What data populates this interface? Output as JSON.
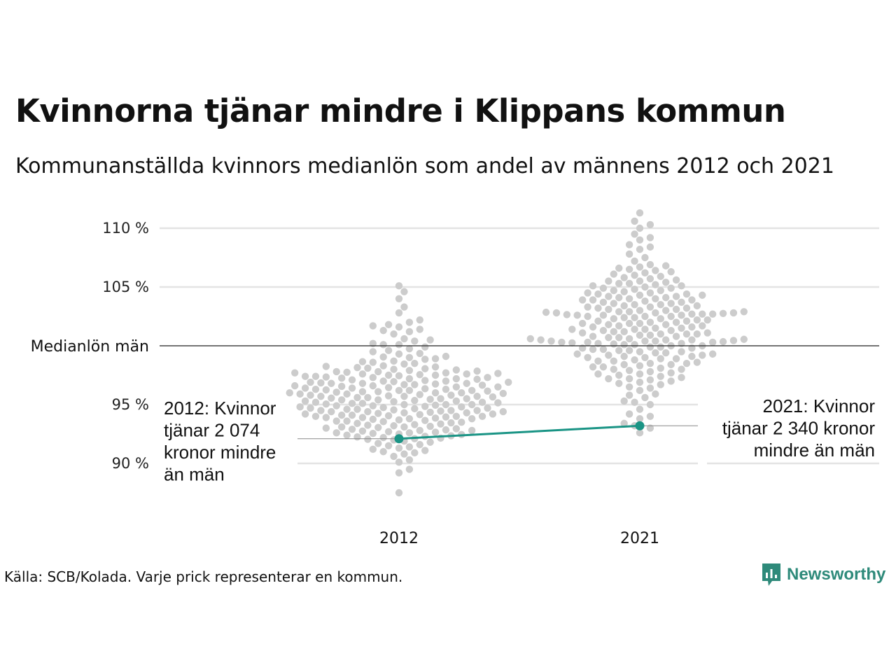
{
  "header": {
    "title": "Kvinnorna tjänar mindre i Klippans kommun",
    "subtitle": "Kommunanställda kvinnors medianlön som andel av männens 2012 och 2021"
  },
  "footer": {
    "source": "Källa: SCB/Kolada. Varje prick representerar en kommun.",
    "brand": "Newsworthy"
  },
  "colors": {
    "dots": "#cccccc",
    "highlight": "#1a9485",
    "grid": "#e3e3e3",
    "reference": "#222222",
    "brand": "#2e8a7a"
  },
  "chart_data": {
    "type": "scatter",
    "x": [
      "2012",
      "2021"
    ],
    "ylim": [
      86.5,
      112
    ],
    "yticks": [
      {
        "value": 90,
        "label": "90 %"
      },
      {
        "value": 95,
        "label": "95 %"
      },
      {
        "value": 105,
        "label": "105 %"
      },
      {
        "value": 110,
        "label": "110 %"
      }
    ],
    "reference_line": {
      "value": 100,
      "label": "Medianlön män"
    },
    "series": [
      {
        "name": "",
        "highlight": true,
        "values": [
          92.1,
          93.2
        ]
      }
    ],
    "annotations": [
      {
        "x": "2012",
        "text": [
          "2012: Kvinnor",
          "tjänar 2 074",
          "kronor mindre",
          "än män"
        ],
        "align": "left"
      },
      {
        "x": "2021",
        "text": [
          "2021: Kvinnor",
          "tjänar 2 340 kronor",
          "mindre än män"
        ],
        "align": "right"
      }
    ],
    "distributions": [
      {
        "x": "2012",
        "values": [
          87.5,
          89.2,
          89.5,
          90.1,
          90.3,
          90.6,
          90.8,
          91.0,
          91.3,
          91.5,
          91.7,
          91.8,
          92.0,
          92.1,
          92.2,
          92.3,
          92.4,
          92.5,
          92.6,
          92.7,
          92.8,
          92.9,
          93.0,
          93.1,
          93.2,
          93.3,
          93.4,
          93.5,
          93.6,
          93.7,
          93.8,
          93.9,
          94.0,
          94.1,
          94.2,
          94.3,
          94.4,
          94.5,
          94.6,
          94.7,
          94.8,
          94.9,
          95.0,
          95.1,
          95.2,
          95.3,
          95.4,
          95.5,
          95.6,
          95.7,
          95.8,
          95.9,
          96.0,
          96.1,
          96.2,
          96.3,
          96.4,
          96.5,
          96.6,
          96.7,
          96.8,
          96.9,
          97.0,
          97.1,
          97.2,
          97.3,
          97.4,
          97.5,
          97.6,
          97.7,
          97.8,
          97.9,
          98.0,
          98.1,
          98.2,
          98.3,
          98.5,
          98.7,
          98.9,
          99.1,
          99.3,
          99.6,
          99.9,
          100.2,
          100.6,
          101.0,
          101.4,
          101.8,
          102.2,
          102.8,
          103.3,
          104.0,
          104.6,
          105.1,
          91.2,
          91.4,
          91.6,
          91.9,
          92.05,
          92.15,
          92.25,
          92.35,
          92.45,
          92.55,
          92.65,
          92.75,
          92.85,
          92.95,
          93.05,
          93.15,
          93.25,
          93.35,
          93.45,
          93.55,
          93.65,
          93.75,
          93.85,
          93.95,
          94.05,
          94.15,
          94.25,
          94.35,
          94.45,
          94.55,
          94.65,
          94.75,
          94.85,
          94.95,
          95.05,
          95.15,
          95.25,
          95.35,
          95.45,
          95.55,
          95.65,
          95.75,
          95.85,
          95.95,
          96.05,
          96.15,
          96.25,
          96.35,
          96.45,
          96.55,
          96.65,
          96.75,
          96.85,
          96.95,
          97.05,
          97.15,
          97.25,
          97.35,
          97.45,
          97.55,
          97.65,
          97.75,
          97.85,
          97.95,
          98.05,
          98.15,
          98.25,
          98.45,
          98.65,
          98.85,
          99.05,
          99.35,
          99.75,
          100.1,
          100.5,
          101.2,
          101.6,
          102.0,
          94.0,
          94.2,
          94.4,
          94.6,
          94.8,
          95.0,
          95.2,
          95.4,
          95.6,
          95.8,
          96.0,
          96.2,
          96.4,
          96.6,
          96.8,
          97.0,
          97.2,
          97.4,
          95.1,
          95.3,
          95.5,
          95.7,
          95.9,
          96.1,
          96.3,
          96.5,
          96.7,
          96.9,
          93.6,
          93.8,
          94.1,
          94.3,
          94.5,
          94.7,
          94.9,
          97.6,
          97.8,
          97.7,
          95.0,
          94.5,
          96.8,
          97.3,
          95.7,
          96.2,
          94.4,
          94.0,
          97.5,
          92.6,
          90.9,
          91.1,
          98.6,
          99.0,
          99.5,
          100.1,
          100.4,
          101.3,
          101.7,
          93.1,
          93.9,
          92.8,
          96.0
        ]
      },
      {
        "x": "2021",
        "values": [
          92.6,
          93.0,
          93.4,
          93.8,
          94.2,
          94.6,
          95.0,
          95.3,
          95.6,
          95.9,
          96.2,
          96.5,
          96.7,
          96.9,
          97.1,
          97.3,
          97.5,
          97.7,
          97.9,
          98.1,
          98.3,
          98.5,
          98.7,
          98.9,
          99.1,
          99.3,
          99.5,
          99.7,
          99.9,
          100.1,
          100.3,
          100.5,
          100.7,
          100.9,
          101.1,
          101.3,
          101.5,
          101.7,
          101.9,
          102.1,
          102.3,
          102.5,
          102.7,
          102.9,
          103.1,
          103.3,
          103.5,
          103.7,
          103.9,
          104.1,
          104.3,
          104.5,
          104.7,
          104.9,
          105.1,
          105.3,
          105.5,
          105.7,
          105.9,
          106.1,
          106.3,
          106.5,
          106.7,
          106.9,
          107.2,
          107.5,
          107.8,
          108.2,
          108.6,
          109.0,
          109.5,
          110.0,
          110.6,
          111.3,
          97.0,
          97.2,
          97.4,
          97.6,
          97.8,
          98.0,
          98.2,
          98.4,
          98.6,
          98.8,
          99.0,
          99.2,
          99.4,
          99.6,
          99.8,
          100.0,
          100.2,
          100.4,
          100.6,
          100.8,
          101.0,
          101.2,
          101.4,
          101.6,
          101.8,
          102.0,
          102.2,
          102.4,
          102.6,
          102.8,
          103.0,
          103.2,
          103.4,
          103.6,
          103.8,
          104.0,
          104.2,
          104.4,
          104.6,
          104.8,
          105.0,
          105.2,
          105.4,
          105.6,
          105.8,
          106.0,
          106.2,
          106.4,
          106.6,
          106.8,
          98.5,
          98.7,
          98.9,
          99.1,
          99.3,
          99.5,
          99.7,
          99.9,
          100.1,
          100.3,
          100.5,
          100.7,
          100.9,
          101.1,
          101.3,
          101.5,
          101.7,
          101.9,
          102.1,
          102.3,
          102.5,
          102.7,
          102.9,
          103.1,
          103.3,
          103.5,
          103.7,
          103.9,
          104.1,
          104.3,
          104.5,
          104.7,
          104.9,
          105.1,
          105.3,
          105.5,
          99.8,
          100.0,
          100.2,
          100.4,
          100.6,
          100.8,
          101.0,
          101.2,
          101.4,
          101.6,
          101.8,
          102.0,
          102.2,
          102.4,
          102.6,
          102.8,
          103.0,
          103.2,
          103.4,
          100.3,
          100.35,
          100.4,
          102.7,
          102.75,
          102.8,
          102.85,
          102.9,
          102.65,
          100.45,
          100.25,
          102.6,
          100.5,
          98.2,
          98.4,
          98.0,
          97.6,
          99.0,
          99.4,
          101.0,
          101.4,
          103.6,
          104.0,
          104.4,
          96.4,
          96.8,
          97.2,
          95.2,
          95.8,
          94.0,
          93.2,
          108.4,
          109.2,
          110.3,
          103.9,
          104.2,
          99.2,
          99.6,
          101.9,
          102.5,
          100.15,
          100.55
        ]
      }
    ]
  }
}
